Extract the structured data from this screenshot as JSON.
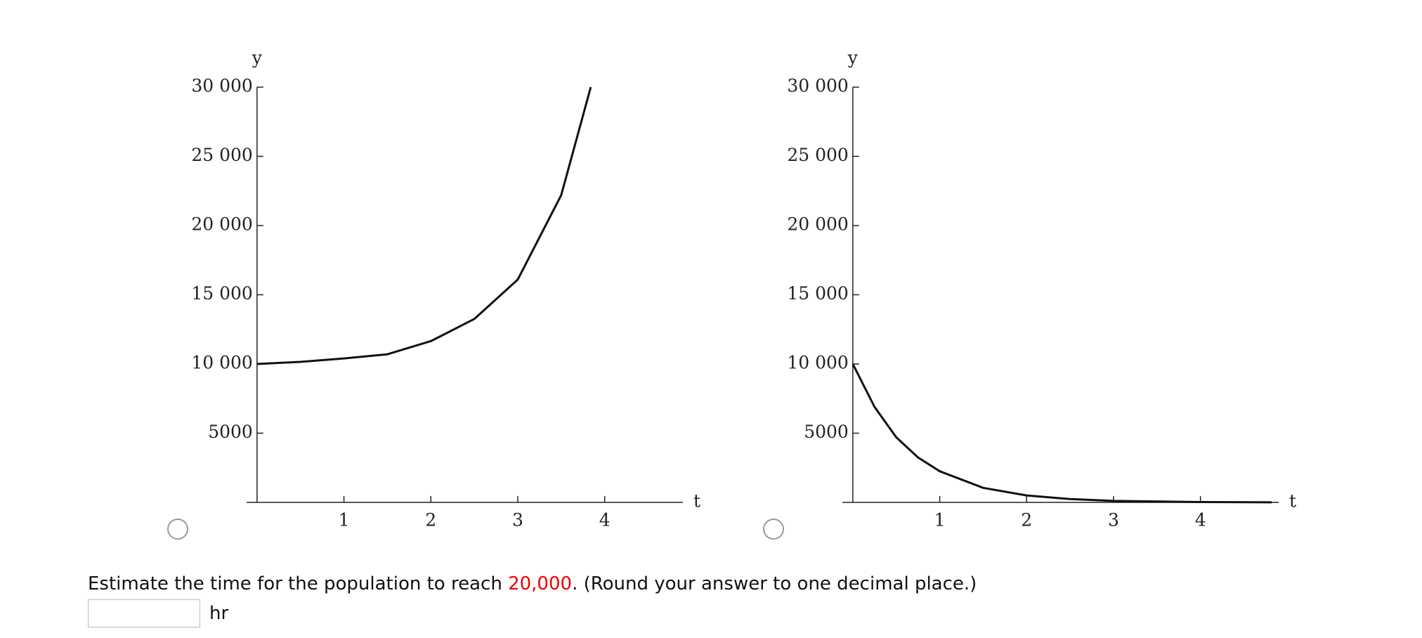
{
  "chart_data": [
    {
      "type": "line",
      "x_label": "t",
      "y_label": "y",
      "x": [
        0,
        0.5,
        1,
        1.5,
        2,
        2.5,
        3,
        3.5,
        3.84
      ],
      "series": [
        {
          "color": "#111",
          "values": [
            10000,
            10150,
            10400,
            10700,
            11650,
            13250,
            16100,
            22200,
            30000
          ]
        }
      ],
      "xlim": [
        -0.12,
        4.9
      ],
      "ylim": [
        0,
        30000
      ],
      "xticks": [
        1,
        2,
        3,
        4
      ],
      "yticks": [
        5000,
        {
          "value": 10000,
          "label": "10 000"
        },
        {
          "value": 15000,
          "label": "15 000"
        },
        {
          "value": 20000,
          "label": "20 000"
        },
        {
          "value": 25000,
          "label": "25 000"
        },
        {
          "value": 30000,
          "label": "30 000"
        }
      ]
    },
    {
      "type": "line",
      "x_label": "t",
      "y_label": "y",
      "x": [
        0,
        0.25,
        0.5,
        0.75,
        1,
        1.5,
        2,
        2.5,
        3,
        4,
        4.82
      ],
      "series": [
        {
          "color": "#111",
          "values": [
            10000,
            6900,
            4700,
            3250,
            2250,
            1050,
            500,
            240,
            110,
            25,
            7
          ]
        }
      ],
      "xlim": [
        -0.12,
        4.9
      ],
      "ylim": [
        0,
        30000
      ],
      "xticks": [
        1,
        2,
        3,
        4
      ],
      "yticks": [
        5000,
        {
          "value": 10000,
          "label": "10 000"
        },
        {
          "value": 15000,
          "label": "15 000"
        },
        {
          "value": 20000,
          "label": "20 000"
        },
        {
          "value": 25000,
          "label": "25 000"
        },
        {
          "value": 30000,
          "label": "30 000"
        }
      ]
    }
  ],
  "question": {
    "before": "Estimate the time for the population to reach ",
    "highlight": "20,000",
    "after": ". (Round your answer to one decimal place.)",
    "unit": "hr"
  }
}
